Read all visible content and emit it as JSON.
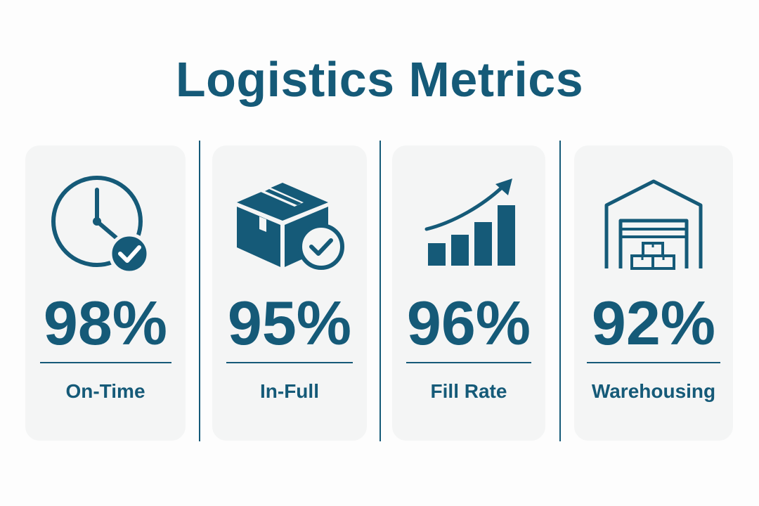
{
  "title": "Logistics Metrics",
  "colors": {
    "accent": "#155a78",
    "card_background": "#f4f5f5",
    "page_background": "#fdfdfd"
  },
  "metrics": [
    {
      "value": "98%",
      "label": "On-Time",
      "icon": "clock-check-icon"
    },
    {
      "value": "95%",
      "label": "In-Full",
      "icon": "box-check-icon"
    },
    {
      "value": "96%",
      "label": "Fill Rate",
      "icon": "bar-chart-up-icon"
    },
    {
      "value": "92%",
      "label": "Warehousing",
      "icon": "warehouse-icon"
    }
  ]
}
